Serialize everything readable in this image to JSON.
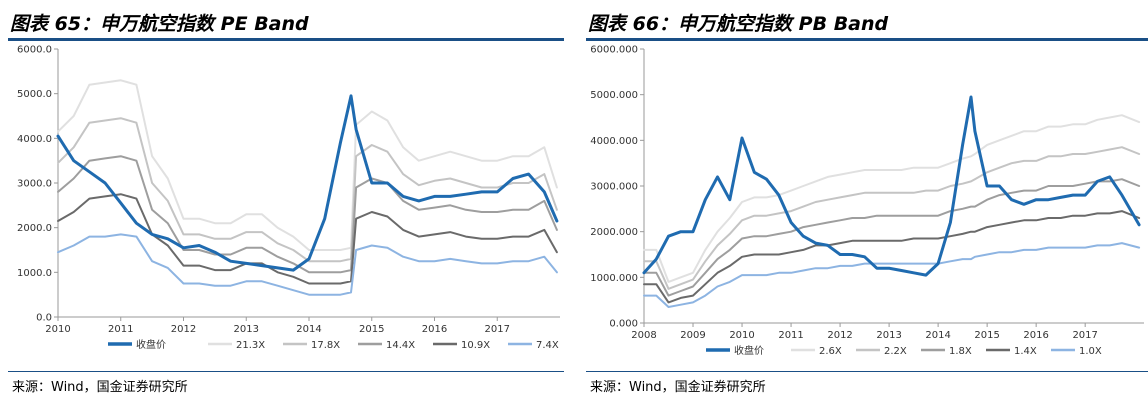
{
  "charts": [
    {
      "figure_title": "图表 65：申万航空指数 PE Band",
      "source": "来源：Wind，国金证券研究所",
      "colors": {
        "rule": "#1a4f86",
        "axis": "#9a9a9a"
      },
      "chart_data": {
        "type": "line",
        "title": "",
        "xlabel": "",
        "ylabel": "",
        "xlim": [
          2010,
          2018
        ],
        "ylim": [
          0,
          6000
        ],
        "x_ticks": [
          "2010",
          "2011",
          "2012",
          "2013",
          "2014",
          "2015",
          "2016",
          "2017"
        ],
        "y_ticks": [
          "0.0",
          "1000.0",
          "2000.0",
          "3000.0",
          "4000.0",
          "5000.0",
          "6000.0"
        ],
        "grid": false,
        "legend": "bottom",
        "x": [
          2010.0,
          2010.25,
          2010.5,
          2010.75,
          2011.0,
          2011.25,
          2011.5,
          2011.75,
          2012.0,
          2012.25,
          2012.5,
          2012.75,
          2013.0,
          2013.25,
          2013.5,
          2013.75,
          2014.0,
          2014.25,
          2014.5,
          2014.67,
          2014.75,
          2015.0,
          2015.25,
          2015.5,
          2015.75,
          2016.0,
          2016.25,
          2016.5,
          2016.75,
          2017.0,
          2017.25,
          2017.5,
          2017.75,
          2017.95
        ],
        "series": [
          {
            "name": "收盘价",
            "color": "#1f6bb0",
            "width": 3,
            "values": [
              4050,
              3500,
              3250,
              3000,
              2550,
              2100,
              1850,
              1750,
              1550,
              1600,
              1450,
              1250,
              1200,
              1150,
              1100,
              1050,
              1300,
              2200,
              3900,
              4950,
              4200,
              3000,
              3000,
              2700,
              2600,
              2700,
              2700,
              2750,
              2800,
              2800,
              3100,
              3200,
              2800,
              2150
            ]
          },
          {
            "name": "21.3X",
            "color": "#e0e0e0",
            "width": 2,
            "values": [
              4150,
              4500,
              5200,
              5250,
              5300,
              5200,
              3600,
              3100,
              2200,
              2200,
              2100,
              2100,
              2300,
              2300,
              2000,
              1800,
              1500,
              1500,
              1500,
              1550,
              4300,
              4600,
              4400,
              3800,
              3500,
              3600,
              3700,
              3600,
              3500,
              3500,
              3600,
              3600,
              3800,
              2900
            ]
          },
          {
            "name": "17.8X",
            "color": "#c4c4c4",
            "width": 2,
            "values": [
              3450,
              3800,
              4350,
              4400,
              4450,
              4350,
              3000,
              2600,
              1850,
              1850,
              1750,
              1750,
              1900,
              1900,
              1650,
              1500,
              1250,
              1250,
              1250,
              1300,
              3600,
              3850,
              3700,
              3200,
              2950,
              3050,
              3100,
              3000,
              2900,
              2900,
              3000,
              3000,
              3200,
              2400
            ]
          },
          {
            "name": "14.4X",
            "color": "#9e9e9e",
            "width": 2,
            "values": [
              2800,
              3100,
              3500,
              3550,
              3600,
              3500,
              2400,
              2100,
              1500,
              1500,
              1400,
              1400,
              1550,
              1550,
              1350,
              1200,
              1000,
              1000,
              1000,
              1050,
              2900,
              3100,
              3000,
              2600,
              2400,
              2450,
              2500,
              2400,
              2350,
              2350,
              2400,
              2400,
              2600,
              1950
            ]
          },
          {
            "name": "10.9X",
            "color": "#6a6a6a",
            "width": 2,
            "values": [
              2150,
              2350,
              2650,
              2700,
              2750,
              2650,
              1850,
              1600,
              1150,
              1150,
              1050,
              1050,
              1200,
              1200,
              1000,
              900,
              750,
              750,
              750,
              800,
              2200,
              2350,
              2250,
              1950,
              1800,
              1850,
              1900,
              1800,
              1750,
              1750,
              1800,
              1800,
              1950,
              1450
            ]
          },
          {
            "name": "7.4X",
            "color": "#8db4e2",
            "width": 2,
            "values": [
              1450,
              1600,
              1800,
              1800,
              1850,
              1800,
              1250,
              1100,
              750,
              750,
              700,
              700,
              800,
              800,
              700,
              600,
              500,
              500,
              500,
              550,
              1500,
              1600,
              1550,
              1350,
              1250,
              1250,
              1300,
              1250,
              1200,
              1200,
              1250,
              1250,
              1350,
              1000
            ]
          }
        ]
      }
    },
    {
      "figure_title": "图表 66：申万航空指数 PB Band",
      "source": "来源：Wind，国金证券研究所",
      "colors": {
        "rule": "#1a4f86",
        "axis": "#9a9a9a"
      },
      "chart_data": {
        "type": "line",
        "title": "",
        "xlabel": "",
        "ylabel": "",
        "xlim": [
          2008,
          2018.2
        ],
        "ylim": [
          0,
          6000
        ],
        "x_ticks": [
          "2008",
          "2009",
          "2010",
          "2011",
          "2012",
          "2013",
          "2014",
          "2015",
          "2016",
          "2017"
        ],
        "y_ticks": [
          "0.000",
          "1000.000",
          "2000.000",
          "3000.000",
          "4000.000",
          "5000.000",
          "6000.000"
        ],
        "grid": false,
        "legend": "bottom",
        "x": [
          2008.0,
          2008.25,
          2008.5,
          2008.75,
          2009.0,
          2009.25,
          2009.5,
          2009.75,
          2010.0,
          2010.25,
          2010.5,
          2010.75,
          2011.0,
          2011.25,
          2011.5,
          2011.75,
          2012.0,
          2012.25,
          2012.5,
          2012.75,
          2013.0,
          2013.25,
          2013.5,
          2013.75,
          2014.0,
          2014.25,
          2014.5,
          2014.67,
          2014.75,
          2015.0,
          2015.25,
          2015.5,
          2015.75,
          2016.0,
          2016.25,
          2016.5,
          2016.75,
          2017.0,
          2017.25,
          2017.5,
          2017.75,
          2018.1
        ],
        "series": [
          {
            "name": "收盘价",
            "color": "#1f6bb0",
            "width": 3,
            "values": [
              1100,
              1400,
              1900,
              2000,
              2000,
              2700,
              3200,
              2700,
              4050,
              3300,
              3150,
              2800,
              2200,
              1900,
              1750,
              1700,
              1500,
              1500,
              1450,
              1200,
              1200,
              1150,
              1100,
              1050,
              1300,
              2200,
              3900,
              4950,
              4200,
              3000,
              3000,
              2700,
              2600,
              2700,
              2700,
              2750,
              2800,
              2800,
              3100,
              3200,
              2800,
              2150
            ]
          },
          {
            "name": "2.6X",
            "color": "#e0e0e0",
            "width": 2,
            "values": [
              1600,
              1600,
              900,
              1000,
              1100,
              1600,
              2000,
              2300,
              2650,
              2750,
              2750,
              2800,
              2900,
              3000,
              3100,
              3200,
              3250,
              3300,
              3350,
              3350,
              3350,
              3350,
              3400,
              3400,
              3400,
              3500,
              3600,
              3650,
              3700,
              3900,
              4000,
              4100,
              4200,
              4200,
              4300,
              4300,
              4350,
              4350,
              4450,
              4500,
              4550,
              4400
            ]
          },
          {
            "name": "2.2X",
            "color": "#c4c4c4",
            "width": 2,
            "values": [
              1350,
              1350,
              750,
              850,
              950,
              1350,
              1700,
              1950,
              2250,
              2350,
              2350,
              2400,
              2450,
              2550,
              2650,
              2700,
              2750,
              2800,
              2850,
              2850,
              2850,
              2850,
              2850,
              2900,
              2900,
              3000,
              3050,
              3100,
              3150,
              3300,
              3400,
              3500,
              3550,
              3550,
              3650,
              3650,
              3700,
              3700,
              3750,
              3800,
              3850,
              3700
            ]
          },
          {
            "name": "1.8X",
            "color": "#9e9e9e",
            "width": 2,
            "values": [
              1100,
              1100,
              600,
              700,
              800,
              1100,
              1400,
              1600,
              1850,
              1900,
              1900,
              1950,
              2000,
              2100,
              2150,
              2200,
              2250,
              2300,
              2300,
              2350,
              2350,
              2350,
              2350,
              2350,
              2350,
              2450,
              2500,
              2550,
              2550,
              2700,
              2800,
              2850,
              2900,
              2900,
              3000,
              3000,
              3000,
              3050,
              3100,
              3100,
              3150,
              3000
            ]
          },
          {
            "name": "1.4X",
            "color": "#6a6a6a",
            "width": 2,
            "values": [
              850,
              850,
              450,
              550,
              600,
              850,
              1100,
              1250,
              1450,
              1500,
              1500,
              1500,
              1550,
              1600,
              1700,
              1700,
              1750,
              1800,
              1800,
              1800,
              1800,
              1800,
              1850,
              1850,
              1850,
              1900,
              1950,
              2000,
              2000,
              2100,
              2150,
              2200,
              2250,
              2250,
              2300,
              2300,
              2350,
              2350,
              2400,
              2400,
              2450,
              2300
            ]
          },
          {
            "name": "1.0X",
            "color": "#8db4e2",
            "width": 2,
            "values": [
              600,
              600,
              350,
              400,
              450,
              600,
              800,
              900,
              1050,
              1050,
              1050,
              1100,
              1100,
              1150,
              1200,
              1200,
              1250,
              1250,
              1300,
              1300,
              1300,
              1300,
              1300,
              1300,
              1300,
              1350,
              1400,
              1400,
              1450,
              1500,
              1550,
              1550,
              1600,
              1600,
              1650,
              1650,
              1650,
              1650,
              1700,
              1700,
              1750,
              1650
            ]
          }
        ]
      }
    }
  ]
}
